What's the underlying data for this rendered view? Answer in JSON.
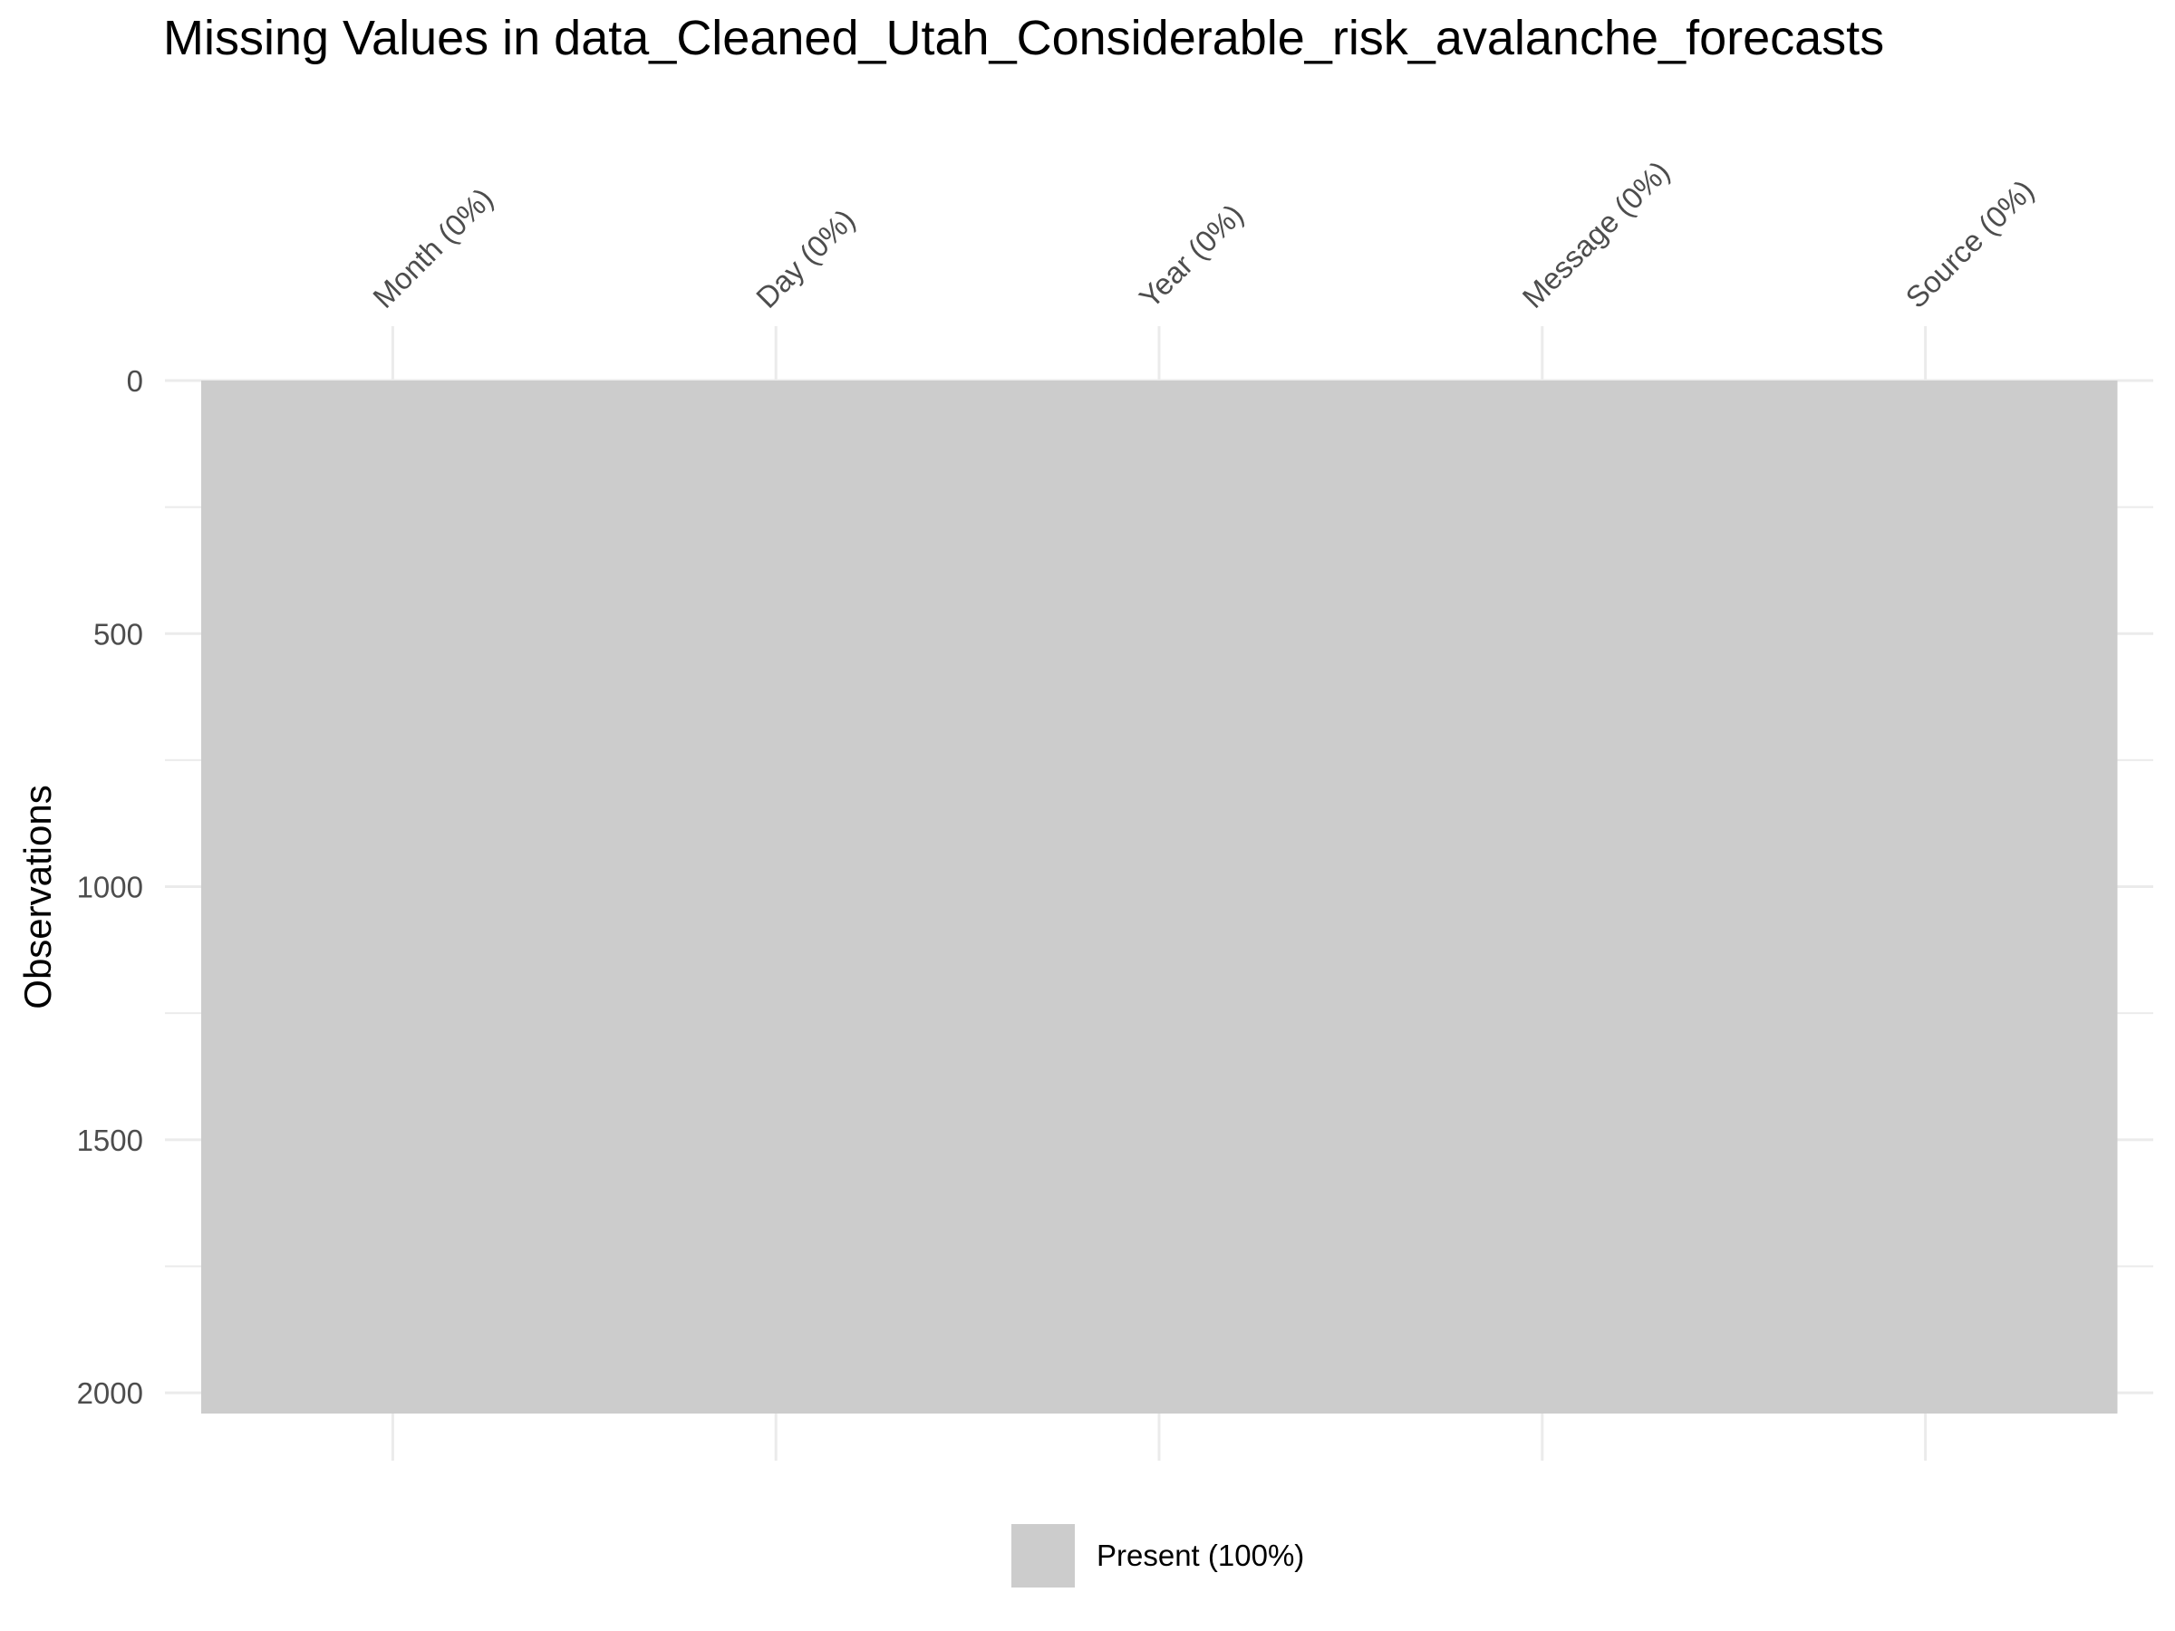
{
  "chart_data": {
    "type": "heatmap",
    "title": "Missing Values in data_Cleaned_Utah_Considerable_risk_avalanche_forecasts",
    "xlabel": "",
    "ylabel": "Observations",
    "columns": [
      "Month (0%)",
      "Day (0%)",
      "Year (0%)",
      "Message (0%)",
      "Source (0%)"
    ],
    "n_observations": 2041,
    "ylim": [
      0,
      2041
    ],
    "y_ticks": [
      0,
      500,
      1000,
      1500,
      2000
    ],
    "y_axis_reversed": true,
    "x_axis_position": "top",
    "x_tick_rotation_deg": -45,
    "grid": true,
    "legend_position": "bottom",
    "legend": [
      {
        "label": "Present (100%)",
        "color": "#cccccc"
      }
    ],
    "series": [
      {
        "name": "Present (100%)",
        "color": "#cccccc",
        "values": [
          100,
          100,
          100,
          100,
          100
        ]
      }
    ],
    "colors": {
      "present": "#cccccc",
      "grid": "#ebebeb",
      "tick_text": "#4d4d4d"
    }
  }
}
